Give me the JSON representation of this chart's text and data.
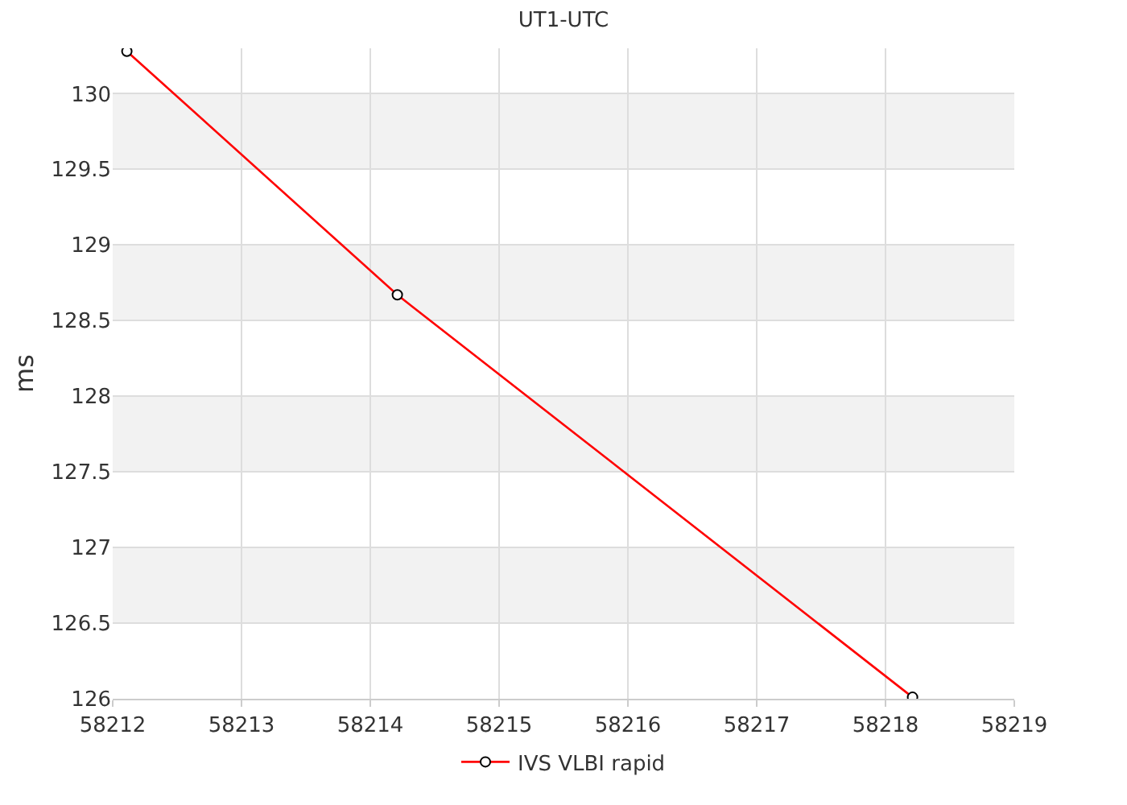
{
  "chart_data": {
    "type": "line",
    "title": "UT1-UTC",
    "ylabel": "ms",
    "x": [
      58212.11,
      58214.21,
      58218.21
    ],
    "series": [
      {
        "name": "IVS VLBI rapid",
        "color": "#ff0000",
        "values": [
          130.28,
          128.67,
          126.01
        ]
      }
    ],
    "xlim": [
      58212,
      58219
    ],
    "xticks": [
      58212,
      58213,
      58214,
      58215,
      58216,
      58217,
      58218,
      58219
    ],
    "ylim": [
      126,
      130.3
    ],
    "yticks": [
      126,
      126.5,
      127,
      127.5,
      128,
      128.5,
      129,
      129.5,
      130
    ],
    "bands": [
      {
        "axis": "y",
        "from": 126.5,
        "to": 127,
        "color": "#f2f2f2"
      },
      {
        "axis": "y",
        "from": 127.5,
        "to": 128,
        "color": "#f2f2f2"
      },
      {
        "axis": "y",
        "from": 128.5,
        "to": 129,
        "color": "#f2f2f2"
      },
      {
        "axis": "y",
        "from": 129.5,
        "to": 130,
        "color": "#f2f2f2"
      }
    ],
    "grid": true,
    "legend": "bottom",
    "marker": "circle",
    "line_style": "solid"
  }
}
